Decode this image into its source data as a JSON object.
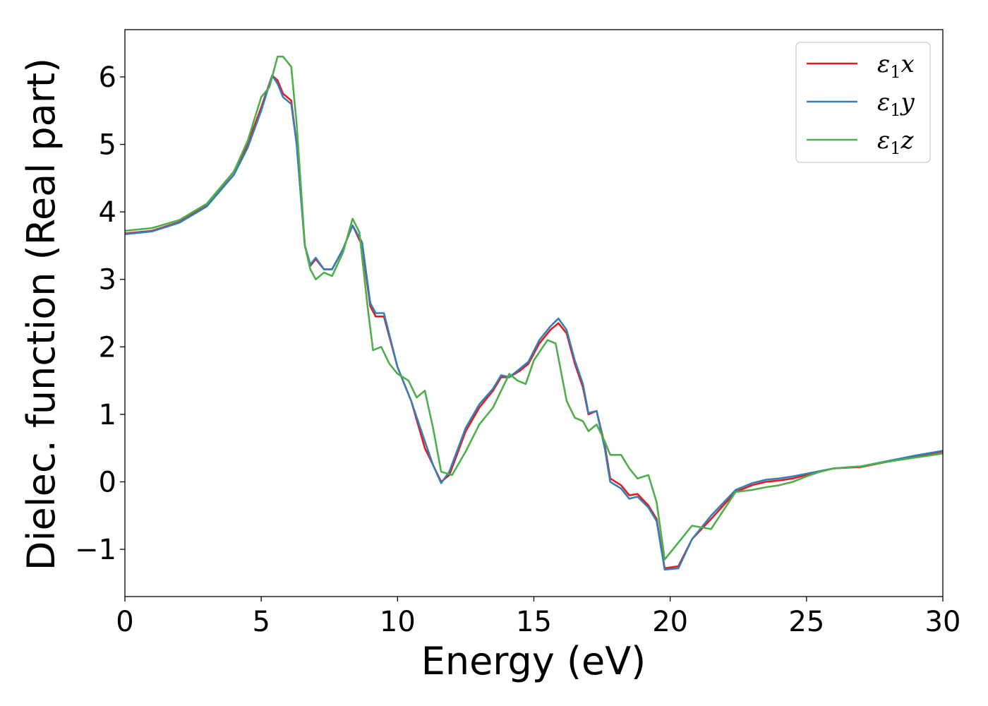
{
  "chart_data": {
    "type": "line",
    "title": "",
    "xlabel": "Energy (eV)",
    "ylabel": "Dielec. function (Real part)",
    "xlim": [
      0,
      30
    ],
    "ylim": [
      -1.7,
      6.7
    ],
    "x_ticks": [
      0,
      5,
      10,
      15,
      20,
      25,
      30
    ],
    "x_tick_labels": [
      "0",
      "5",
      "10",
      "15",
      "20",
      "25",
      "30"
    ],
    "y_ticks": [
      -1,
      0,
      1,
      2,
      3,
      4,
      5,
      6
    ],
    "y_tick_labels": [
      "−1",
      "0",
      "1",
      "2",
      "3",
      "4",
      "5",
      "6"
    ],
    "grid": false,
    "legend_position": "top-right",
    "series": [
      {
        "name": "ε1x",
        "label_base": "ε",
        "label_sub": "1",
        "label_suffix": "x",
        "color": "#e41a1c",
        "points": [
          [
            0,
            3.68
          ],
          [
            1,
            3.72
          ],
          [
            2,
            3.85
          ],
          [
            3,
            4.1
          ],
          [
            4,
            4.6
          ],
          [
            4.5,
            5.0
          ],
          [
            5,
            5.55
          ],
          [
            5.4,
            6.02
          ],
          [
            5.6,
            5.95
          ],
          [
            5.8,
            5.75
          ],
          [
            6.1,
            5.65
          ],
          [
            6.3,
            5.0
          ],
          [
            6.6,
            3.5
          ],
          [
            6.8,
            3.2
          ],
          [
            7.0,
            3.3
          ],
          [
            7.3,
            3.15
          ],
          [
            7.6,
            3.15
          ],
          [
            8.0,
            3.45
          ],
          [
            8.35,
            3.8
          ],
          [
            8.7,
            3.5
          ],
          [
            9.0,
            2.6
          ],
          [
            9.2,
            2.45
          ],
          [
            9.5,
            2.45
          ],
          [
            10.0,
            1.7
          ],
          [
            10.5,
            1.2
          ],
          [
            11.0,
            0.5
          ],
          [
            11.3,
            0.25
          ],
          [
            11.6,
            0.0
          ],
          [
            11.9,
            0.1
          ],
          [
            12.5,
            0.75
          ],
          [
            13.0,
            1.1
          ],
          [
            13.5,
            1.35
          ],
          [
            13.8,
            1.55
          ],
          [
            14.1,
            1.55
          ],
          [
            14.5,
            1.65
          ],
          [
            14.8,
            1.75
          ],
          [
            15.2,
            2.05
          ],
          [
            15.6,
            2.25
          ],
          [
            15.9,
            2.35
          ],
          [
            16.2,
            2.2
          ],
          [
            16.5,
            1.75
          ],
          [
            16.8,
            1.4
          ],
          [
            17.0,
            1.0
          ],
          [
            17.3,
            1.05
          ],
          [
            17.6,
            0.55
          ],
          [
            17.8,
            0.05
          ],
          [
            18.2,
            -0.05
          ],
          [
            18.5,
            -0.2
          ],
          [
            18.8,
            -0.18
          ],
          [
            19.2,
            -0.35
          ],
          [
            19.5,
            -0.55
          ],
          [
            19.8,
            -1.28
          ],
          [
            20.3,
            -1.25
          ],
          [
            20.8,
            -0.85
          ],
          [
            21.5,
            -0.55
          ],
          [
            22.4,
            -0.15
          ],
          [
            23.0,
            -0.05
          ],
          [
            23.5,
            0.0
          ],
          [
            24.0,
            0.02
          ],
          [
            24.5,
            0.05
          ],
          [
            25.0,
            0.1
          ],
          [
            25.5,
            0.15
          ],
          [
            26.0,
            0.2
          ],
          [
            27.0,
            0.22
          ],
          [
            28.0,
            0.3
          ],
          [
            29.0,
            0.38
          ],
          [
            30.0,
            0.45
          ]
        ]
      },
      {
        "name": "ε1y",
        "label_base": "ε",
        "label_sub": "1",
        "label_suffix": "y",
        "color": "#377eb8",
        "points": [
          [
            0,
            3.67
          ],
          [
            1,
            3.71
          ],
          [
            2,
            3.84
          ],
          [
            3,
            4.08
          ],
          [
            4,
            4.55
          ],
          [
            4.5,
            4.95
          ],
          [
            5,
            5.5
          ],
          [
            5.4,
            6.02
          ],
          [
            5.6,
            5.9
          ],
          [
            5.8,
            5.7
          ],
          [
            6.1,
            5.6
          ],
          [
            6.3,
            5.0
          ],
          [
            6.6,
            3.5
          ],
          [
            6.8,
            3.22
          ],
          [
            7.0,
            3.32
          ],
          [
            7.3,
            3.15
          ],
          [
            7.6,
            3.15
          ],
          [
            8.0,
            3.45
          ],
          [
            8.35,
            3.8
          ],
          [
            8.7,
            3.55
          ],
          [
            9.0,
            2.65
          ],
          [
            9.2,
            2.5
          ],
          [
            9.5,
            2.5
          ],
          [
            10.0,
            1.7
          ],
          [
            10.5,
            1.2
          ],
          [
            11.0,
            0.6
          ],
          [
            11.3,
            0.25
          ],
          [
            11.6,
            -0.02
          ],
          [
            11.9,
            0.15
          ],
          [
            12.5,
            0.8
          ],
          [
            13.0,
            1.15
          ],
          [
            13.5,
            1.38
          ],
          [
            13.8,
            1.58
          ],
          [
            14.1,
            1.55
          ],
          [
            14.5,
            1.68
          ],
          [
            14.8,
            1.78
          ],
          [
            15.2,
            2.1
          ],
          [
            15.6,
            2.3
          ],
          [
            15.9,
            2.42
          ],
          [
            16.2,
            2.25
          ],
          [
            16.5,
            1.8
          ],
          [
            16.8,
            1.45
          ],
          [
            17.0,
            1.02
          ],
          [
            17.3,
            1.05
          ],
          [
            17.6,
            0.5
          ],
          [
            17.8,
            0.0
          ],
          [
            18.2,
            -0.1
          ],
          [
            18.5,
            -0.25
          ],
          [
            18.8,
            -0.22
          ],
          [
            19.2,
            -0.38
          ],
          [
            19.5,
            -0.58
          ],
          [
            19.8,
            -1.3
          ],
          [
            20.3,
            -1.28
          ],
          [
            20.8,
            -0.85
          ],
          [
            21.5,
            -0.5
          ],
          [
            22.4,
            -0.12
          ],
          [
            23.0,
            -0.02
          ],
          [
            23.5,
            0.03
          ],
          [
            24.0,
            0.05
          ],
          [
            24.5,
            0.08
          ],
          [
            25.0,
            0.12
          ],
          [
            25.5,
            0.16
          ],
          [
            26.0,
            0.2
          ],
          [
            27.0,
            0.23
          ],
          [
            28.0,
            0.31
          ],
          [
            29.0,
            0.39
          ],
          [
            30.0,
            0.46
          ]
        ]
      },
      {
        "name": "ε1z",
        "label_base": "ε",
        "label_sub": "1",
        "label_suffix": "z",
        "color": "#4daf4a",
        "points": [
          [
            0,
            3.72
          ],
          [
            1,
            3.76
          ],
          [
            2,
            3.88
          ],
          [
            3,
            4.12
          ],
          [
            4,
            4.6
          ],
          [
            4.5,
            5.05
          ],
          [
            5,
            5.7
          ],
          [
            5.3,
            5.85
          ],
          [
            5.6,
            6.3
          ],
          [
            5.8,
            6.3
          ],
          [
            6.1,
            6.15
          ],
          [
            6.3,
            5.3
          ],
          [
            6.6,
            3.5
          ],
          [
            6.8,
            3.15
          ],
          [
            7.0,
            3.0
          ],
          [
            7.3,
            3.1
          ],
          [
            7.6,
            3.05
          ],
          [
            8.0,
            3.4
          ],
          [
            8.35,
            3.9
          ],
          [
            8.6,
            3.7
          ],
          [
            8.9,
            2.6
          ],
          [
            9.1,
            1.95
          ],
          [
            9.4,
            2.0
          ],
          [
            9.7,
            1.75
          ],
          [
            10.0,
            1.6
          ],
          [
            10.4,
            1.5
          ],
          [
            10.7,
            1.25
          ],
          [
            11.0,
            1.35
          ],
          [
            11.3,
            0.8
          ],
          [
            11.6,
            0.15
          ],
          [
            12.0,
            0.1
          ],
          [
            12.5,
            0.45
          ],
          [
            13.0,
            0.85
          ],
          [
            13.5,
            1.1
          ],
          [
            13.8,
            1.35
          ],
          [
            14.1,
            1.6
          ],
          [
            14.4,
            1.5
          ],
          [
            14.7,
            1.45
          ],
          [
            15.0,
            1.8
          ],
          [
            15.5,
            2.1
          ],
          [
            15.8,
            2.05
          ],
          [
            16.2,
            1.2
          ],
          [
            16.5,
            0.95
          ],
          [
            16.8,
            0.9
          ],
          [
            17.0,
            0.75
          ],
          [
            17.3,
            0.85
          ],
          [
            17.6,
            0.6
          ],
          [
            17.8,
            0.4
          ],
          [
            18.2,
            0.4
          ],
          [
            18.5,
            0.2
          ],
          [
            18.8,
            0.05
          ],
          [
            19.2,
            0.1
          ],
          [
            19.5,
            -0.3
          ],
          [
            19.8,
            -1.15
          ],
          [
            20.2,
            -0.95
          ],
          [
            20.8,
            -0.65
          ],
          [
            21.5,
            -0.7
          ],
          [
            22.4,
            -0.15
          ],
          [
            23.0,
            -0.12
          ],
          [
            23.5,
            -0.08
          ],
          [
            24.0,
            -0.05
          ],
          [
            24.5,
            0.0
          ],
          [
            25.0,
            0.08
          ],
          [
            25.5,
            0.15
          ],
          [
            26.0,
            0.2
          ],
          [
            27.0,
            0.23
          ],
          [
            28.0,
            0.3
          ],
          [
            29.0,
            0.36
          ],
          [
            30.0,
            0.42
          ]
        ]
      }
    ]
  }
}
